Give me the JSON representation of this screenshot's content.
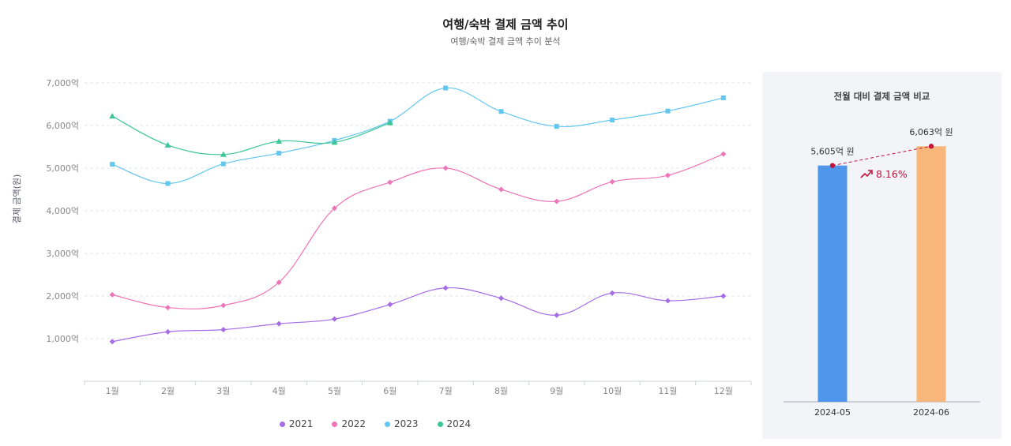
{
  "chart_data": [
    {
      "type": "line",
      "title": "여행/숙박 결제 금액 추이",
      "subtitle": "여행/숙박 결제 금액 추이 분석",
      "ylabel": "결제 금액(원)",
      "categories": [
        "1월",
        "2월",
        "3월",
        "4월",
        "5월",
        "6월",
        "7월",
        "8월",
        "9월",
        "10월",
        "11월",
        "12월"
      ],
      "ylim": [
        0,
        7000
      ],
      "yticks": [
        "1,000억",
        "2,000억",
        "3,000억",
        "4,000억",
        "5,000억",
        "6,000억",
        "7,000억"
      ],
      "legend_position": "bottom",
      "series": [
        {
          "name": "2021",
          "color": "#a56ce6",
          "marker": "diamond",
          "values": [
            930,
            1160,
            1210,
            1350,
            1460,
            1800,
            2190,
            1950,
            1550,
            2070,
            1890,
            2000
          ]
        },
        {
          "name": "2022",
          "color": "#ee74b8",
          "marker": "diamond",
          "values": [
            2030,
            1730,
            1780,
            2320,
            4060,
            4670,
            5000,
            4500,
            4220,
            4680,
            4830,
            5330
          ]
        },
        {
          "name": "2023",
          "color": "#62c6ee",
          "marker": "square",
          "values": [
            5090,
            4640,
            5100,
            5350,
            5650,
            6100,
            6880,
            6330,
            5980,
            6130,
            6340,
            6650
          ]
        },
        {
          "name": "2024",
          "color": "#3dc696",
          "marker": "triangle",
          "values": [
            6220,
            5540,
            5320,
            5630,
            5605,
            6063,
            null,
            null,
            null,
            null,
            null,
            null
          ]
        }
      ]
    },
    {
      "type": "bar",
      "title": "전월 대비 결제 금액 비교",
      "categories": [
        "2024-05",
        "2024-06"
      ],
      "values": [
        5605,
        6063
      ],
      "value_labels": [
        "5,605억 원",
        "6,063억 원"
      ],
      "colors": [
        "#5096ea",
        "#f9b67a"
      ],
      "change_label": "8.16%",
      "change_color": "#c0143c"
    }
  ]
}
